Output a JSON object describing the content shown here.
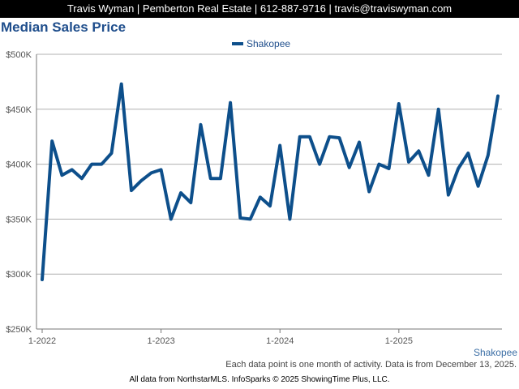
{
  "header": {
    "text": "Travis Wyman | Pemberton Real Estate | 612-887-9716 | travis@traviswyman.com"
  },
  "note": "Each data point is one month of activity. Data is from December 13, 2025.",
  "footer": "All data from NorthstarMLS. InfoSparks © 2025 ShowingTime Plus, LLC.",
  "colors": {
    "series": "#0d4f8b",
    "title": "#1f4e8c",
    "grid": "#b0b0b0"
  },
  "chart_data": {
    "type": "line",
    "title": "Median Sales Price",
    "legend": {
      "entries": [
        "Shakopee"
      ],
      "placement": "top-center"
    },
    "series_label": "Shakopee",
    "ylim": [
      250000,
      500000
    ],
    "yticks": [
      250000,
      300000,
      350000,
      400000,
      450000,
      500000
    ],
    "ytick_labels": [
      "$250K",
      "$300K",
      "$350K",
      "$400K",
      "$450K",
      "$500K"
    ],
    "xticks": [
      {
        "label": "1-2022",
        "index": 0
      },
      {
        "label": "1-2023",
        "index": 12
      },
      {
        "label": "1-2024",
        "index": 24
      },
      {
        "label": "1-2025",
        "index": 36
      }
    ],
    "grid": true,
    "series": [
      {
        "name": "Shakopee",
        "x": [
          "2022-01",
          "2022-02",
          "2022-03",
          "2022-04",
          "2022-05",
          "2022-06",
          "2022-07",
          "2022-08",
          "2022-09",
          "2022-10",
          "2022-11",
          "2022-12",
          "2023-01",
          "2023-02",
          "2023-03",
          "2023-04",
          "2023-05",
          "2023-06",
          "2023-07",
          "2023-08",
          "2023-09",
          "2023-10",
          "2023-11",
          "2023-12",
          "2024-01",
          "2024-02",
          "2024-03",
          "2024-04",
          "2024-05",
          "2024-06",
          "2024-07",
          "2024-08",
          "2024-09",
          "2024-10",
          "2024-11",
          "2024-12",
          "2025-01",
          "2025-02",
          "2025-03",
          "2025-04",
          "2025-05",
          "2025-06",
          "2025-07",
          "2025-08",
          "2025-09",
          "2025-10",
          "2025-11"
        ],
        "values": [
          295000,
          421000,
          390000,
          395000,
          387000,
          400000,
          400000,
          410000,
          473000,
          376000,
          385000,
          392000,
          395000,
          350000,
          374000,
          365000,
          436000,
          387000,
          387000,
          456000,
          351000,
          350000,
          370000,
          362000,
          417000,
          350000,
          425000,
          425000,
          400000,
          425000,
          424000,
          397000,
          420000,
          375000,
          400000,
          396000,
          455000,
          402000,
          412000,
          390000,
          450000,
          372000,
          396000,
          410000,
          380000,
          408000,
          462000
        ]
      }
    ]
  }
}
